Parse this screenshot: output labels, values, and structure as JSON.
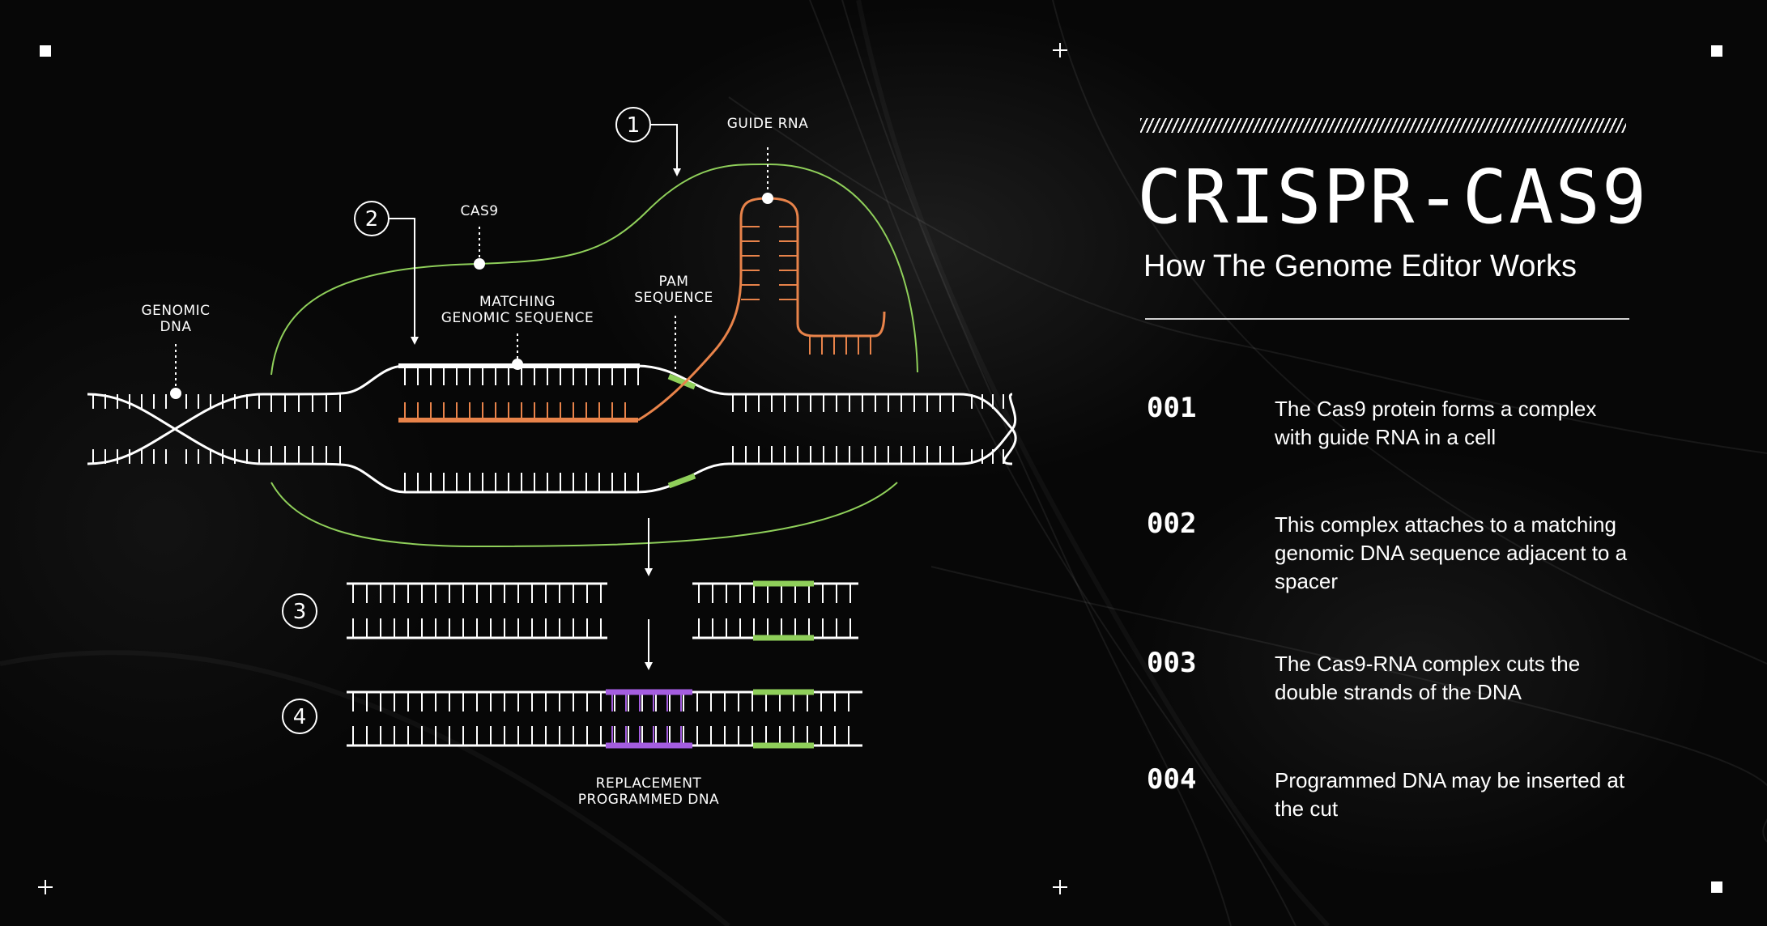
{
  "title": "CRISPR-CAS9",
  "subtitle": "How The Genome Editor Works",
  "colors": {
    "background": "#070707",
    "dna": "#ffffff",
    "guide_outline": "#8fcf5a",
    "guide_rna": "#e8834a",
    "pam": "#8fcf5a",
    "replacement": "#a45de0"
  },
  "diagram": {
    "labels": {
      "guide_rna": "GUIDE RNA",
      "cas9": "CAS9",
      "genomic_dna": "GENOMIC\nDNA",
      "matching_sequence": "MATCHING\nGENOMIC SEQUENCE",
      "pam_sequence": "PAM\nSEQUENCE",
      "replacement_dna": "REPLACEMENT\nPROGRAMMED DNA"
    },
    "markers": [
      "1",
      "2",
      "3",
      "4"
    ]
  },
  "steps": [
    {
      "number": "001",
      "text": "The Cas9 protein forms a complex with guide RNA in a cell"
    },
    {
      "number": "002",
      "text": "This complex attaches to a matching genomic DNA sequence adjacent to a spacer"
    },
    {
      "number": "003",
      "text": "The Cas9-RNA complex cuts the double strands of the DNA"
    },
    {
      "number": "004",
      "text": "Programmed DNA may be inserted at the cut"
    }
  ]
}
